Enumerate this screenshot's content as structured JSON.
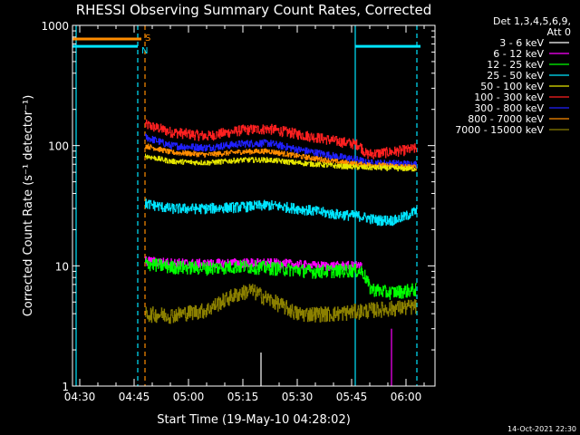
{
  "chart_data": {
    "type": "line",
    "title": "RHESSI Observing Summary Count Rates, Corrected",
    "xlabel": "Start Time (19-May-10 04:28:02)",
    "ylabel": "Corrected Count Rate (s⁻¹ detector⁻¹)",
    "yscale": "log",
    "ylim": [
      1,
      1000
    ],
    "xlim": [
      "04:28",
      "06:08"
    ],
    "x_ticks": [
      "04:30",
      "04:45",
      "05:00",
      "05:15",
      "05:30",
      "05:45",
      "06:00"
    ],
    "y_ticks": [
      "1",
      "10",
      "100",
      "1000"
    ],
    "grid": false,
    "legend": {
      "placement": "top-right",
      "header": [
        "Det 1,3,4,5,6,9,",
        "Att 0"
      ],
      "entries": [
        {
          "label": "3 - 6 keV",
          "color": "#ffffff"
        },
        {
          "label": "6 - 12 keV",
          "color": "#ff00ff"
        },
        {
          "label": "12 - 25 keV",
          "color": "#00ff00"
        },
        {
          "label": "25 - 50 keV",
          "color": "#00e5ff"
        },
        {
          "label": "50 - 100 keV",
          "color": "#e6e600"
        },
        {
          "label": "100 - 300 keV",
          "color": "#ff2020"
        },
        {
          "label": "300 - 800 keV",
          "color": "#2020ff"
        },
        {
          "label": "800 - 7000 keV",
          "color": "#ff8c00"
        },
        {
          "label": "7000 - 15000 keV",
          "color": "#8b8000"
        }
      ]
    },
    "series": [
      {
        "name": "100 - 300 keV",
        "color": "#ff2020",
        "noise": 0.1,
        "points": [
          [
            "04:48",
            150
          ],
          [
            "04:55",
            130
          ],
          [
            "05:05",
            120
          ],
          [
            "05:15",
            135
          ],
          [
            "05:22",
            138
          ],
          [
            "05:30",
            125
          ],
          [
            "05:40",
            110
          ],
          [
            "05:47",
            102
          ],
          [
            "05:49",
            85
          ],
          [
            "05:55",
            88
          ],
          [
            "06:00",
            92
          ],
          [
            "06:03",
            95
          ]
        ]
      },
      {
        "name": "300 - 800 keV",
        "color": "#2020ff",
        "noise": 0.07,
        "points": [
          [
            "04:48",
            118
          ],
          [
            "04:55",
            100
          ],
          [
            "05:05",
            96
          ],
          [
            "05:15",
            104
          ],
          [
            "05:22",
            105
          ],
          [
            "05:30",
            93
          ],
          [
            "05:40",
            82
          ],
          [
            "05:47",
            76
          ],
          [
            "05:49",
            72
          ],
          [
            "06:03",
            70
          ]
        ]
      },
      {
        "name": "800 - 7000 keV",
        "color": "#ff8c00",
        "noise": 0.05,
        "points": [
          [
            "04:48",
            100
          ],
          [
            "04:55",
            88
          ],
          [
            "05:05",
            84
          ],
          [
            "05:15",
            89
          ],
          [
            "05:22",
            90
          ],
          [
            "05:30",
            82
          ],
          [
            "05:40",
            74
          ],
          [
            "05:47",
            70
          ],
          [
            "06:03",
            66
          ]
        ]
      },
      {
        "name": "50 - 100 keV",
        "color": "#e6e600",
        "noise": 0.05,
        "points": [
          [
            "04:48",
            82
          ],
          [
            "04:55",
            74
          ],
          [
            "05:05",
            72
          ],
          [
            "05:15",
            76
          ],
          [
            "05:22",
            76
          ],
          [
            "05:30",
            72
          ],
          [
            "05:40",
            68
          ],
          [
            "05:47",
            66
          ],
          [
            "06:03",
            64
          ]
        ]
      },
      {
        "name": "25 - 50 keV",
        "color": "#00e5ff",
        "noise": 0.1,
        "points": [
          [
            "04:48",
            33
          ],
          [
            "04:55",
            30
          ],
          [
            "05:05",
            30
          ],
          [
            "05:15",
            31
          ],
          [
            "05:22",
            32
          ],
          [
            "05:30",
            30
          ],
          [
            "05:40",
            27
          ],
          [
            "05:47",
            26
          ],
          [
            "05:52",
            24
          ],
          [
            "05:57",
            24
          ],
          [
            "06:00",
            26
          ],
          [
            "06:03",
            29
          ]
        ]
      },
      {
        "name": "6 - 12 keV",
        "color": "#ff00ff",
        "noise": 0.09,
        "points": [
          [
            "04:48",
            11
          ],
          [
            "04:55",
            10.6
          ],
          [
            "05:05",
            10.4
          ],
          [
            "05:15",
            10.6
          ],
          [
            "05:25",
            10.5
          ],
          [
            "05:35",
            10.0
          ],
          [
            "05:45",
            10.0
          ],
          [
            "05:48",
            10.0
          ]
        ]
      },
      {
        "name": "12 - 25 keV",
        "color": "#00ff00",
        "noise": 0.13,
        "points": [
          [
            "04:48",
            10.5
          ],
          [
            "04:55",
            9.8
          ],
          [
            "05:05",
            9.6
          ],
          [
            "05:15",
            9.9
          ],
          [
            "05:25",
            9.5
          ],
          [
            "05:35",
            9.0
          ],
          [
            "05:45",
            9.2
          ],
          [
            "05:48",
            9.0
          ],
          [
            "05:50",
            6.5
          ],
          [
            "05:55",
            6.0
          ],
          [
            "06:00",
            6.2
          ],
          [
            "06:03",
            6.4
          ]
        ]
      },
      {
        "name": "7000 - 15000 keV",
        "color": "#8b8000",
        "noise": 0.15,
        "points": [
          [
            "04:48",
            4.0
          ],
          [
            "04:55",
            3.9
          ],
          [
            "05:05",
            4.3
          ],
          [
            "05:12",
            5.6
          ],
          [
            "05:17",
            6.3
          ],
          [
            "05:22",
            5.3
          ],
          [
            "05:30",
            4.0
          ],
          [
            "05:40",
            4.0
          ],
          [
            "05:50",
            4.3
          ],
          [
            "06:03",
            4.6
          ]
        ]
      }
    ],
    "spikes": [
      {
        "color": "#ff00ff",
        "x": "05:56",
        "base": 1,
        "top": 3
      },
      {
        "color": "#ffffff",
        "x": "05:20",
        "base": 1,
        "top": 1.9
      }
    ],
    "annotations": {
      "attenuator_lines": [
        {
          "x": "04:29",
          "color": "#00e5ff",
          "style": "solid"
        },
        {
          "x": "04:46",
          "color": "#00e5ff",
          "style": "dashed"
        },
        {
          "x": "04:48",
          "color": "#ff8c00",
          "style": "dashed"
        },
        {
          "x": "05:46",
          "color": "#00e5ff",
          "style": "solid"
        },
        {
          "x": "06:03",
          "color": "#00e5ff",
          "style": "dashed"
        }
      ],
      "status_bars": [
        {
          "from": "04:28",
          "to": "04:47",
          "y": 770,
          "color": "#ff8c00",
          "label": "S"
        },
        {
          "from": "04:28",
          "to": "04:46",
          "y": 670,
          "color": "#00e5ff",
          "label": "N"
        },
        {
          "from": "05:46",
          "to": "06:04",
          "y": 670,
          "color": "#00e5ff",
          "label": ""
        }
      ]
    },
    "timestamp": "14-Oct-2021 22:30"
  }
}
